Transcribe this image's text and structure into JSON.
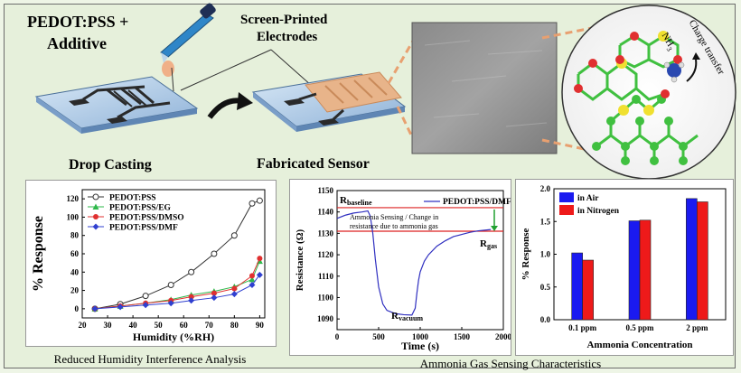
{
  "schematic": {
    "title_line1": "PEDOT:PSS +",
    "title_line2": "Additive",
    "spe_line1": "Screen-Printed",
    "spe_line2": "Electrodes",
    "drop_casting": "Drop Casting",
    "fabricated_sensor": "Fabricated Sensor",
    "molecule_label": "NH",
    "molecule_sub": "3",
    "charge_transfer": "Charge transfer"
  },
  "humidity_panel": {
    "caption": "Reduced Humidity Interference Analysis",
    "chart_data": {
      "type": "line",
      "xlabel": "Humidity (%RH)",
      "ylabel": "% Response",
      "xlim": [
        20,
        92
      ],
      "ylim": [
        -10,
        130
      ],
      "xticks": [
        20,
        30,
        40,
        50,
        60,
        70,
        80,
        90
      ],
      "yticks": [
        0,
        20,
        40,
        60,
        80,
        100,
        120
      ],
      "legend_position": "top-left",
      "x": [
        25,
        35,
        45,
        55,
        63,
        72,
        80,
        87,
        90
      ],
      "series": [
        {
          "name": "PEDOT:PSS",
          "marker": "circle",
          "color": "#333333",
          "values": [
            0,
            5,
            14,
            26,
            40,
            60,
            80,
            115,
            118
          ]
        },
        {
          "name": "PEDOT:PSS/EG",
          "marker": "triangle",
          "color": "#2eb84a",
          "values": [
            0,
            3,
            6,
            10,
            15,
            19,
            24,
            32,
            52
          ]
        },
        {
          "name": "PEDOT:PSS/DMSO",
          "marker": "circle",
          "color": "#e03030",
          "values": [
            0,
            3,
            6,
            9,
            13,
            17,
            22,
            36,
            55
          ]
        },
        {
          "name": "PEDOT:PSS/DMF",
          "marker": "diamond",
          "color": "#3040d0",
          "values": [
            0,
            2,
            4,
            6,
            9,
            12,
            16,
            26,
            37
          ]
        }
      ]
    }
  },
  "resistance_panel": {
    "caption": "Ammonia Gas Sensing Characteristics",
    "chart_data": {
      "type": "line",
      "xlabel": "Time (s)",
      "ylabel": "Resistance (Ω)",
      "xlim": [
        0,
        2000
      ],
      "ylim": [
        1085,
        1150
      ],
      "xticks": [
        0,
        500,
        1000,
        1500,
        2000
      ],
      "yticks": [
        1090,
        1100,
        1110,
        1120,
        1130,
        1140,
        1150
      ],
      "legend_position": "top-right",
      "series": [
        {
          "name": "PEDOT:PSS/DMF",
          "color": "#3030c0",
          "x": [
            0,
            100,
            200,
            300,
            370,
            400,
            430,
            460,
            500,
            550,
            600,
            700,
            800,
            900,
            940,
            960,
            980,
            1000,
            1050,
            1100,
            1200,
            1300,
            1400,
            1500,
            1600,
            1700,
            1800,
            1850
          ],
          "values": [
            1137,
            1138.5,
            1139.5,
            1140,
            1140.5,
            1138,
            1130,
            1118,
            1105,
            1097,
            1094,
            1092.5,
            1092,
            1091.8,
            1095,
            1102,
            1108,
            1112,
            1117,
            1120,
            1124,
            1126.5,
            1128.5,
            1129.5,
            1130.5,
            1131.2,
            1131.6,
            1131.8
          ]
        }
      ],
      "reference_lines": [
        1142,
        1131
      ],
      "annotations": {
        "r_baseline": "R",
        "r_baseline_sub": "baseline",
        "r_vacuum": "R",
        "r_vacuum_sub": "vacuum",
        "r_gas": "R",
        "r_gas_sub": "gas",
        "note_line1": "Ammonia Sensing / Change in",
        "note_line2": "resistance due to ammonia gas"
      }
    }
  },
  "concentration_panel": {
    "chart_data": {
      "type": "bar",
      "xlabel": "Ammonia Concentration",
      "ylabel": "% Response",
      "ylim": [
        0,
        2.0
      ],
      "yticks": [
        "0.0",
        "0.5",
        "1.0",
        "1.5",
        "2.0"
      ],
      "legend_position": "top-left",
      "categories": [
        "0.1 ppm",
        "0.5 ppm",
        "2 ppm"
      ],
      "series": [
        {
          "name": "in Air",
          "color": "#1a1af0",
          "values": [
            1.02,
            1.51,
            1.85
          ]
        },
        {
          "name": "in Nitrogen",
          "color": "#ee1a1a",
          "values": [
            0.91,
            1.52,
            1.8
          ]
        }
      ]
    }
  }
}
